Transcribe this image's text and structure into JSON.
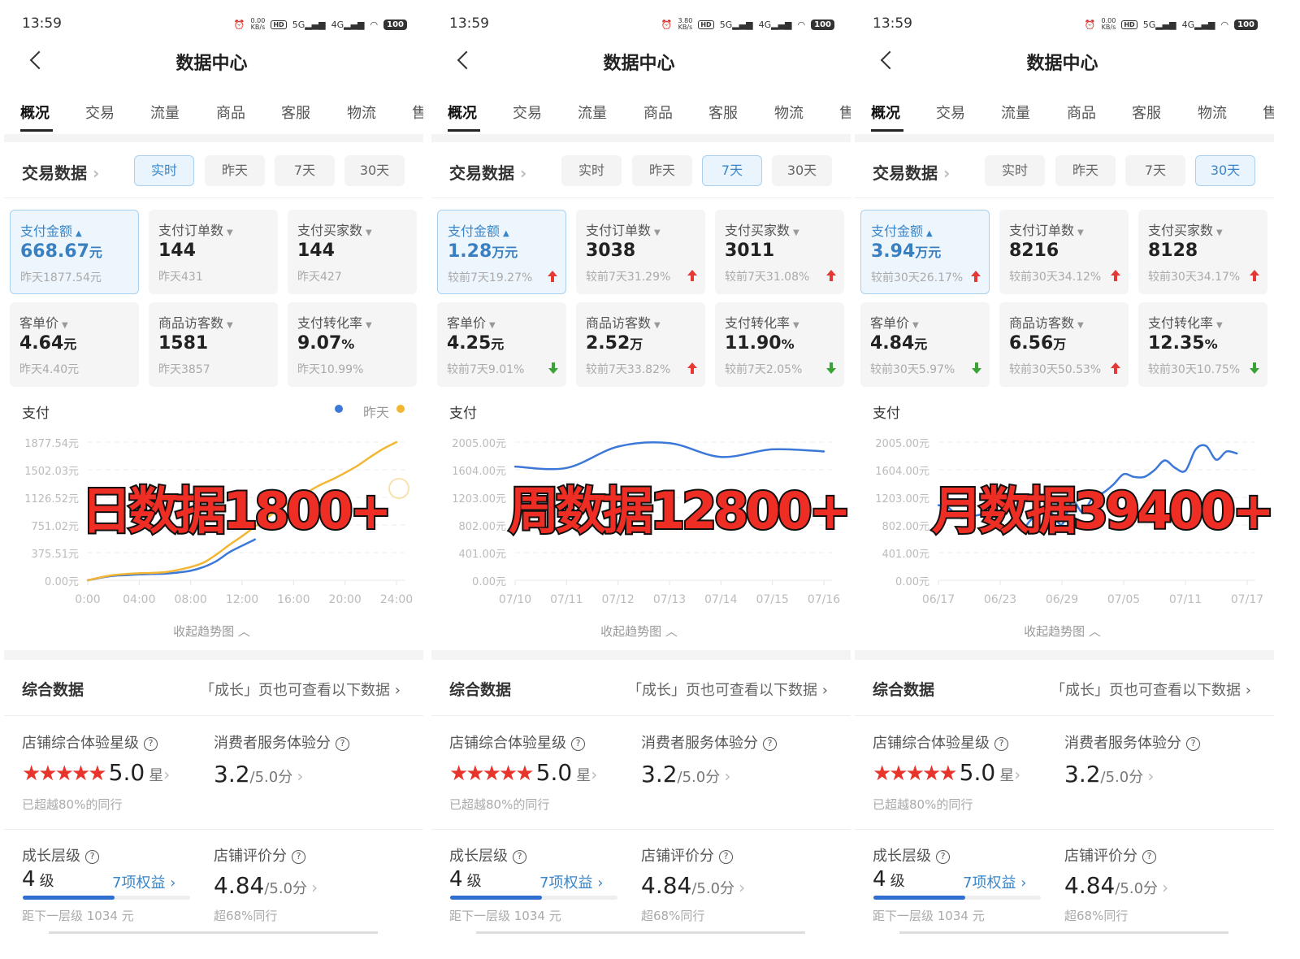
{
  "common": {
    "title": "数据中心",
    "tabs": [
      "概况",
      "交易",
      "流量",
      "商品",
      "客服",
      "物流",
      "售"
    ],
    "section_title": "交易数据",
    "ranges": [
      "实时",
      "昨天",
      "7天",
      "30天"
    ],
    "chart_label": "支付",
    "collapse": "收起趋势图",
    "summary_title": "综合数据",
    "summary_link": "「成长」页也可查看以下数据",
    "star_label": "店铺综合体验星级",
    "star_value": "5.0",
    "star_unit": "星",
    "star_rating": 5,
    "star_note": "已超越80%的同行",
    "service_label": "消费者服务体验分",
    "service_value": "3.2",
    "service_max": "/5.0分",
    "growth_label": "成长层级",
    "growth_value": "4",
    "growth_unit": "级",
    "growth_benefits": "7项权益",
    "growth_progress": 0.55,
    "growth_note": "距下一层级 1034 元",
    "review_label": "店铺评价分",
    "review_value": "4.84",
    "review_max": "/5.0分",
    "review_note": "超68%同行",
    "colors": {
      "accent": "#3a86c8",
      "up": "#e53935",
      "down": "#3aa335",
      "today": "#3c78d8",
      "yesterday": "#f2b632",
      "overlay": "#ee2e24"
    }
  },
  "panels": [
    {
      "status": {
        "time": "13:59",
        "speed": "0.00",
        "speed_unit": "KB/s",
        "battery": "100"
      },
      "selected_range": 0,
      "overlay": "日数据1800+",
      "legend": {
        "yesterday": "昨天"
      },
      "metrics": [
        {
          "label": "支付金额",
          "value": "668.67",
          "unit": "元",
          "sub": "昨天1877.54元",
          "trend": null,
          "selected": true
        },
        {
          "label": "支付订单数",
          "value": "144",
          "unit": "",
          "sub": "昨天431",
          "trend": null
        },
        {
          "label": "支付买家数",
          "value": "144",
          "unit": "",
          "sub": "昨天427",
          "trend": null
        },
        {
          "label": "客单价",
          "value": "4.64",
          "unit": "元",
          "sub": "昨天4.40元",
          "trend": null
        },
        {
          "label": "商品访客数",
          "value": "1581",
          "unit": "",
          "sub": "昨天3857",
          "trend": null
        },
        {
          "label": "支付转化率",
          "value": "9.07",
          "unit": "%",
          "sub": "昨天10.99%",
          "trend": null
        }
      ]
    },
    {
      "status": {
        "time": "13:59",
        "speed": "3.80",
        "speed_unit": "KB/s",
        "battery": "100"
      },
      "selected_range": 2,
      "overlay": "周数据12800+",
      "metrics": [
        {
          "label": "支付金额",
          "value": "1.28",
          "unit": "万元",
          "sub": "较前7天19.27%",
          "trend": "up",
          "selected": true
        },
        {
          "label": "支付订单数",
          "value": "3038",
          "unit": "",
          "sub": "较前7天31.29%",
          "trend": "up"
        },
        {
          "label": "支付买家数",
          "value": "3011",
          "unit": "",
          "sub": "较前7天31.08%",
          "trend": "up"
        },
        {
          "label": "客单价",
          "value": "4.25",
          "unit": "元",
          "sub": "较前7天9.01%",
          "trend": "down"
        },
        {
          "label": "商品访客数",
          "value": "2.52",
          "unit": "万",
          "sub": "较前7天33.82%",
          "trend": "up"
        },
        {
          "label": "支付转化率",
          "value": "11.90",
          "unit": "%",
          "sub": "较前7天2.05%",
          "trend": "down"
        }
      ]
    },
    {
      "status": {
        "time": "13:59",
        "speed": "0.00",
        "speed_unit": "KB/s",
        "battery": "100"
      },
      "selected_range": 3,
      "overlay": "月数据39400+",
      "metrics": [
        {
          "label": "支付金额",
          "value": "3.94",
          "unit": "万元",
          "sub": "较前30天26.17%",
          "trend": "up",
          "selected": true
        },
        {
          "label": "支付订单数",
          "value": "8216",
          "unit": "",
          "sub": "较前30天34.12%",
          "trend": "up"
        },
        {
          "label": "支付买家数",
          "value": "8128",
          "unit": "",
          "sub": "较前30天34.17%",
          "trend": "up"
        },
        {
          "label": "客单价",
          "value": "4.84",
          "unit": "元",
          "sub": "较前30天5.97%",
          "trend": "down"
        },
        {
          "label": "商品访客数",
          "value": "6.56",
          "unit": "万",
          "sub": "较前30天50.53%",
          "trend": "up"
        },
        {
          "label": "支付转化率",
          "value": "12.35",
          "unit": "%",
          "sub": "较前30天10.75%",
          "trend": "down"
        }
      ]
    }
  ],
  "chart_data": [
    {
      "type": "line",
      "title": "支付",
      "y_ticks": [
        "0.00元",
        "375.51元",
        "751.02元",
        "1126.52元",
        "1502.03元",
        "1877.54元"
      ],
      "ylim": [
        0,
        1877.54
      ],
      "x_ticks": [
        "0:00",
        "04:00",
        "08:00",
        "12:00",
        "16:00",
        "20:00",
        "24:00"
      ],
      "grid": true,
      "legend": "top-right",
      "series": [
        {
          "color": "#3c78d8",
          "x": [
            "0:00",
            "1:00",
            "2:00",
            "3:00",
            "4:00",
            "5:00",
            "6:00",
            "7:00",
            "8:00",
            "9:00",
            "10:00",
            "11:00",
            "12:00",
            "13:00"
          ],
          "y": [
            0,
            35,
            60,
            70,
            80,
            85,
            90,
            105,
            130,
            180,
            260,
            380,
            470,
            555
          ]
        },
        {
          "name": "昨天",
          "color": "#f2b632",
          "x": [
            "0:00",
            "1:00",
            "2:00",
            "3:00",
            "4:00",
            "5:00",
            "6:00",
            "7:00",
            "8:00",
            "9:00",
            "10:00",
            "11:00",
            "12:00",
            "13:00",
            "14:00",
            "15:00",
            "16:00",
            "17:00",
            "18:00",
            "19:00",
            "20:00",
            "21:00",
            "22:00",
            "23:00",
            "24:00"
          ],
          "y": [
            0,
            40,
            70,
            85,
            95,
            100,
            110,
            140,
            180,
            240,
            350,
            480,
            600,
            730,
            860,
            980,
            1090,
            1190,
            1290,
            1370,
            1460,
            1560,
            1680,
            1790,
            1877.54
          ]
        }
      ]
    },
    {
      "type": "line",
      "title": "支付",
      "y_ticks": [
        "0.00元",
        "401.00元",
        "802.00元",
        "1203.00元",
        "1604.00元",
        "2005.00元"
      ],
      "ylim": [
        0,
        2005
      ],
      "x_ticks": [
        "07/10",
        "07/11",
        "07/12",
        "07/13",
        "07/14",
        "07/15",
        "07/16"
      ],
      "grid": true,
      "series": [
        {
          "color": "#3c78d8",
          "x": [
            "07/10",
            "07/11",
            "07/12",
            "07/13",
            "07/14",
            "07/15",
            "07/16"
          ],
          "y": [
            1650,
            1630,
            1940,
            1990,
            1790,
            1900,
            1870
          ]
        }
      ]
    },
    {
      "type": "line",
      "title": "支付",
      "y_ticks": [
        "0.00元",
        "401.00元",
        "802.00元",
        "1203.00元",
        "1604.00元",
        "2005.00元"
      ],
      "ylim": [
        0,
        2005
      ],
      "x_ticks": [
        "06/17",
        "06/23",
        "06/29",
        "07/05",
        "07/11",
        "07/17"
      ],
      "grid": true,
      "series": [
        {
          "color": "#3c78d8",
          "x": [
            "06/17",
            "06/18",
            "06/19",
            "06/20",
            "06/21",
            "06/22",
            "06/23",
            "06/24",
            "06/25",
            "06/26",
            "06/27",
            "06/28",
            "06/29",
            "06/30",
            "07/01",
            "07/02",
            "07/03",
            "07/04",
            "07/05",
            "07/06",
            "07/07",
            "07/08",
            "07/09",
            "07/10",
            "07/11",
            "07/12",
            "07/13",
            "07/14",
            "07/15",
            "07/16"
          ],
          "y": [
            1090,
            1050,
            910,
            920,
            950,
            960,
            930,
            1060,
            750,
            880,
            1020,
            970,
            810,
            1150,
            990,
            1200,
            1270,
            1390,
            1540,
            1500,
            1500,
            1600,
            1740,
            1630,
            1590,
            1900,
            1950,
            1750,
            1870,
            1840
          ]
        }
      ]
    }
  ]
}
